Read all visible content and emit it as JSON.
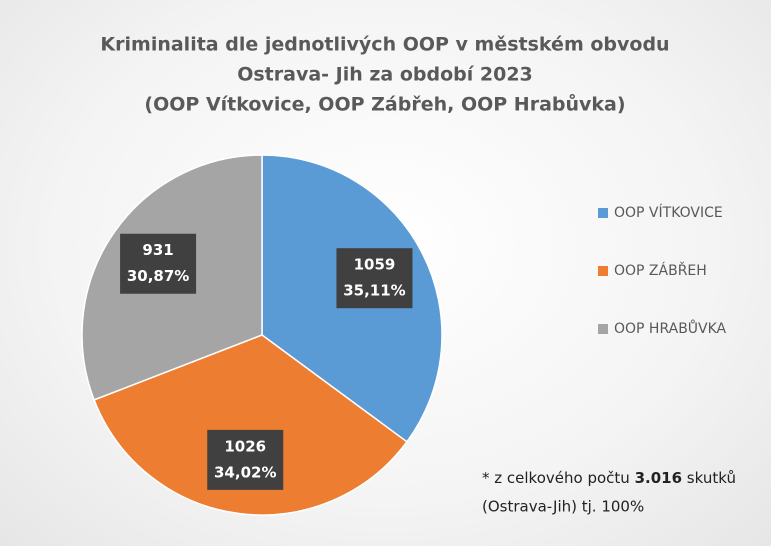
{
  "chart_data": {
    "type": "pie",
    "title": [
      "Kriminalita dle jednotlivých OOP v městském obvodu",
      "Ostrava- Jih za období 2023",
      "(OOP Vítkovice, OOP Zábřeh, OOP Hrabůvka)"
    ],
    "categories": [
      "OOP VÍTKOVICE",
      "OOP ZÁBŘEH",
      "OOP HRABŮVKA"
    ],
    "values": [
      1059,
      1026,
      931
    ],
    "percentages": [
      35.11,
      34.02,
      30.87
    ],
    "percentage_labels": [
      "35,11%",
      "34,02%",
      "30,87%"
    ],
    "colors": [
      "#5b9bd5",
      "#ed7d31",
      "#a5a5a5"
    ],
    "legend": "right",
    "note": {
      "prefix": "* z celkového počtu",
      "total": "3.016",
      "suffix": "skutků",
      "line2": "(Ostrava-Jih) tj. 100%"
    }
  }
}
